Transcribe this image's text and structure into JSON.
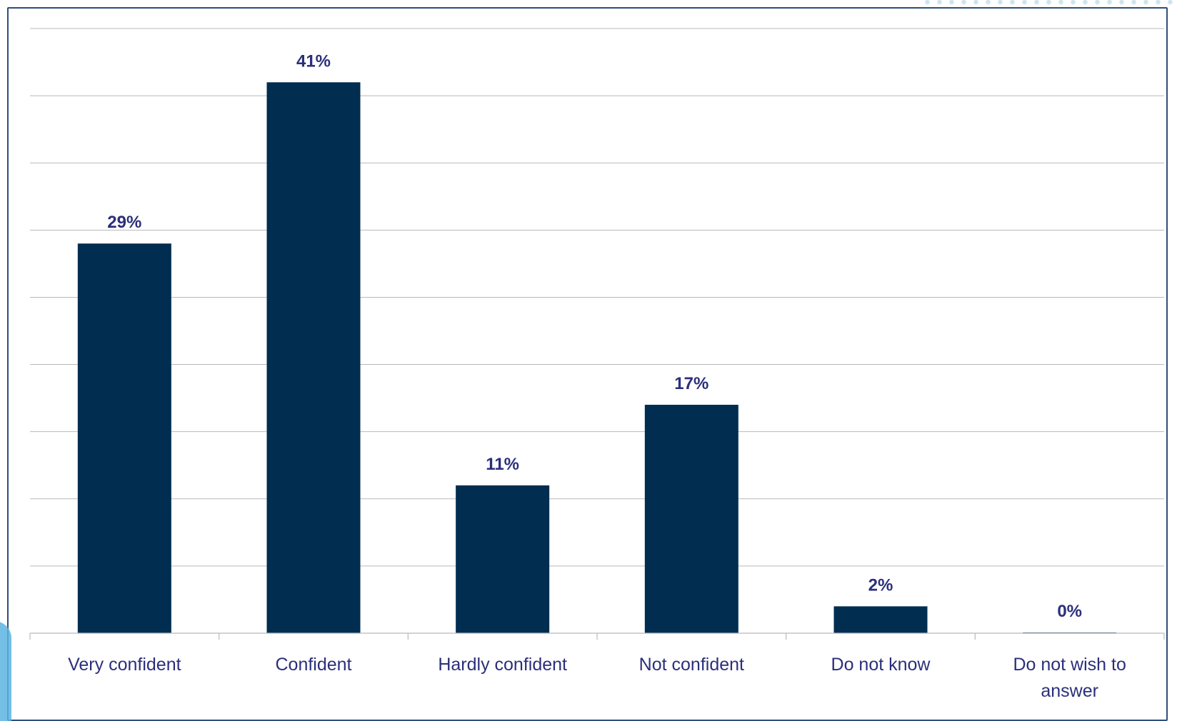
{
  "colors": {
    "bar": "#002d50",
    "label_text": "#2b2f7a",
    "gridline": "#b9b9bf",
    "frame_border": "#2e4f7a"
  },
  "chart_data": {
    "type": "bar",
    "title": "",
    "xlabel": "",
    "ylabel": "",
    "categories": [
      "Very confident",
      "Confident",
      "Hardly confident",
      "Not confident",
      "Do not know",
      "Do not wish to answer"
    ],
    "values": [
      29,
      41,
      11,
      17,
      2,
      0
    ],
    "data_labels": [
      "29%",
      "41%",
      "11%",
      "17%",
      "2%",
      "0%"
    ],
    "unit": "%",
    "ylim": [
      0,
      45
    ],
    "gridline_step": 5,
    "grid": true,
    "y_axis_labels_shown": false,
    "legend": "none"
  }
}
